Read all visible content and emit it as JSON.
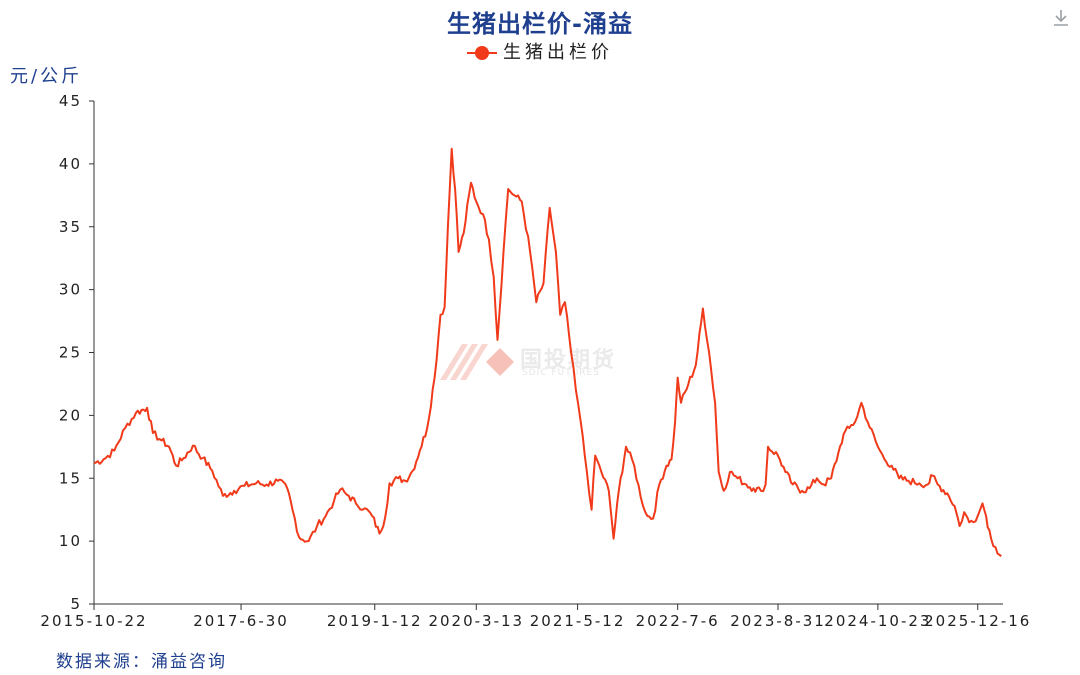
{
  "title": "生猪出栏价-涌益",
  "unit": "元/公斤",
  "source": "数据来源：涌益咨询",
  "colors": {
    "series": "#f03a1a",
    "title": "#1f3f8f",
    "axis": "#333333"
  },
  "watermark": {
    "text": "国投期货",
    "sub": "SDIC FUTURES"
  },
  "icons": {
    "download": "download-icon"
  },
  "chart_data": {
    "type": "line",
    "title": "生猪出栏价-涌益",
    "ylabel": "元/公斤",
    "xlabel": "",
    "legend": "top-center",
    "grid": false,
    "ylim": [
      5,
      45
    ],
    "yticks": [
      5,
      10,
      15,
      20,
      25,
      30,
      35,
      40,
      45
    ],
    "xlim": [
      "2015-10-22",
      "2026-04-01"
    ],
    "xticks": [
      "2015-10-22",
      "2017-6-30",
      "2019-1-12",
      "2020-3-13",
      "2021-5-12",
      "2022-7-6",
      "2023-8-31",
      "2024-10-23",
      "2025-12-16"
    ],
    "series": [
      {
        "name": "生猪出栏价",
        "points": [
          [
            "2015-10-22",
            16.2
          ],
          [
            "2015-12-01",
            16.5
          ],
          [
            "2016-01-15",
            17.2
          ],
          [
            "2016-03-01",
            19.0
          ],
          [
            "2016-04-15",
            20.2
          ],
          [
            "2016-06-01",
            20.6
          ],
          [
            "2016-06-25",
            18.6
          ],
          [
            "2016-08-01",
            18.0
          ],
          [
            "2016-09-01",
            17.5
          ],
          [
            "2016-10-01",
            16.0
          ],
          [
            "2016-11-01",
            16.6
          ],
          [
            "2016-12-10",
            17.6
          ],
          [
            "2017-01-20",
            16.6
          ],
          [
            "2017-03-01",
            15.6
          ],
          [
            "2017-04-15",
            13.6
          ],
          [
            "2017-06-01",
            14.0
          ],
          [
            "2017-07-15",
            14.4
          ],
          [
            "2017-09-01",
            14.6
          ],
          [
            "2017-10-15",
            14.5
          ],
          [
            "2017-12-01",
            14.8
          ],
          [
            "2018-01-10",
            14.2
          ],
          [
            "2018-02-01",
            12.5
          ],
          [
            "2018-03-01",
            10.3
          ],
          [
            "2018-04-10",
            10.0
          ],
          [
            "2018-05-15",
            11.2
          ],
          [
            "2018-06-20",
            12.0
          ],
          [
            "2018-07-25",
            13.2
          ],
          [
            "2018-08-20",
            14.1
          ],
          [
            "2018-09-25",
            13.6
          ],
          [
            "2018-10-25",
            13.0
          ],
          [
            "2018-12-01",
            12.6
          ],
          [
            "2019-01-01",
            12.0
          ],
          [
            "2019-02-01",
            10.6
          ],
          [
            "2019-02-25",
            11.9
          ],
          [
            "2019-03-15",
            14.6
          ],
          [
            "2019-04-20",
            15.0
          ],
          [
            "2019-05-20",
            14.8
          ],
          [
            "2019-06-20",
            15.6
          ],
          [
            "2019-07-20",
            17.2
          ],
          [
            "2019-08-20",
            19.0
          ],
          [
            "2019-09-20",
            23.0
          ],
          [
            "2019-10-15",
            28.0
          ],
          [
            "2019-11-01",
            28.6
          ],
          [
            "2019-11-15",
            35.0
          ],
          [
            "2019-12-01",
            41.2
          ],
          [
            "2019-12-15",
            38.0
          ],
          [
            "2019-12-30",
            33.0
          ],
          [
            "2020-01-20",
            34.5
          ],
          [
            "2020-02-20",
            38.5
          ],
          [
            "2020-03-13",
            37.0
          ],
          [
            "2020-04-10",
            36.0
          ],
          [
            "2020-05-05",
            34.0
          ],
          [
            "2020-05-25",
            31.0
          ],
          [
            "2020-06-10",
            26.0
          ],
          [
            "2020-07-05",
            33.0
          ],
          [
            "2020-07-25",
            38.0
          ],
          [
            "2020-08-20",
            37.5
          ],
          [
            "2020-09-20",
            37.0
          ],
          [
            "2020-10-25",
            33.0
          ],
          [
            "2020-11-20",
            29.0
          ],
          [
            "2020-12-20",
            30.5
          ],
          [
            "2021-01-15",
            36.5
          ],
          [
            "2021-02-10",
            33.0
          ],
          [
            "2021-02-28",
            28.0
          ],
          [
            "2021-03-20",
            29.0
          ],
          [
            "2021-04-15",
            25.0
          ],
          [
            "2021-05-05",
            22.0
          ],
          [
            "2021-05-25",
            19.5
          ],
          [
            "2021-06-20",
            15.5
          ],
          [
            "2021-07-10",
            12.5
          ],
          [
            "2021-07-25",
            16.8
          ],
          [
            "2021-08-20",
            15.5
          ],
          [
            "2021-09-20",
            14.0
          ],
          [
            "2021-10-10",
            10.2
          ],
          [
            "2021-11-01",
            14.0
          ],
          [
            "2021-12-01",
            17.5
          ],
          [
            "2022-01-05",
            16.0
          ],
          [
            "2022-02-01",
            13.5
          ],
          [
            "2022-03-01",
            12.0
          ],
          [
            "2022-03-25",
            11.8
          ],
          [
            "2022-04-20",
            14.5
          ],
          [
            "2022-05-20",
            16.0
          ],
          [
            "2022-06-10",
            16.5
          ],
          [
            "2022-06-25",
            19.5
          ],
          [
            "2022-07-06",
            23.0
          ],
          [
            "2022-07-20",
            21.0
          ],
          [
            "2022-08-20",
            22.5
          ],
          [
            "2022-09-20",
            24.0
          ],
          [
            "2022-10-20",
            28.5
          ],
          [
            "2022-11-15",
            25.0
          ],
          [
            "2022-12-10",
            21.0
          ],
          [
            "2022-12-25",
            15.5
          ],
          [
            "2023-01-15",
            14.0
          ],
          [
            "2023-02-10",
            15.5
          ],
          [
            "2023-03-15",
            15.0
          ],
          [
            "2023-04-20",
            14.5
          ],
          [
            "2023-05-20",
            14.2
          ],
          [
            "2023-06-20",
            14.0
          ],
          [
            "2023-07-10",
            14.5
          ],
          [
            "2023-07-20",
            17.5
          ],
          [
            "2023-08-31",
            16.8
          ],
          [
            "2023-10-01",
            15.5
          ],
          [
            "2023-11-01",
            14.5
          ],
          [
            "2023-12-10",
            14.0
          ],
          [
            "2024-01-10",
            14.2
          ],
          [
            "2024-02-10",
            15.0
          ],
          [
            "2024-03-10",
            14.5
          ],
          [
            "2024-04-10",
            15.0
          ],
          [
            "2024-05-10",
            17.0
          ],
          [
            "2024-06-01",
            18.5
          ],
          [
            "2024-06-25",
            19.0
          ],
          [
            "2024-07-20",
            19.5
          ],
          [
            "2024-08-15",
            21.0
          ],
          [
            "2024-09-10",
            19.5
          ],
          [
            "2024-10-23",
            17.5
          ],
          [
            "2024-11-20",
            16.5
          ],
          [
            "2024-12-20",
            16.0
          ],
          [
            "2025-01-20",
            15.0
          ],
          [
            "2025-03-01",
            14.8
          ],
          [
            "2025-04-15",
            14.6
          ],
          [
            "2025-05-20",
            14.5
          ],
          [
            "2025-06-10",
            15.2
          ],
          [
            "2025-07-01",
            14.5
          ],
          [
            "2025-08-10",
            13.8
          ],
          [
            "2025-09-10",
            12.8
          ],
          [
            "2025-10-01",
            11.2
          ],
          [
            "2025-10-20",
            12.3
          ],
          [
            "2025-11-10",
            11.5
          ],
          [
            "2025-12-16",
            12.0
          ],
          [
            "2026-01-05",
            13.0
          ],
          [
            "2026-01-20",
            12.0
          ],
          [
            "2026-02-10",
            10.2
          ],
          [
            "2026-03-01",
            9.5
          ],
          [
            "2026-03-25",
            8.8
          ]
        ]
      }
    ]
  }
}
